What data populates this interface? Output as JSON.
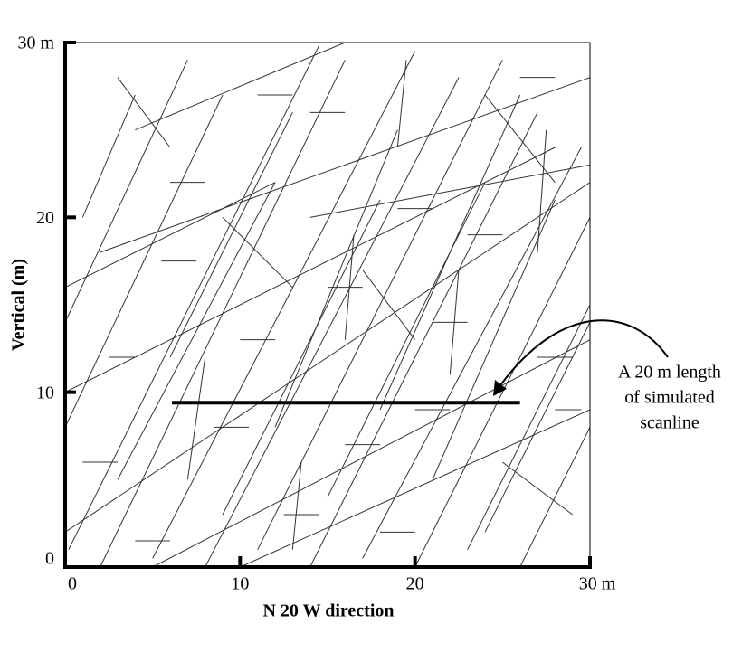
{
  "chart_data": {
    "type": "fracture_map",
    "xlabel": "N 20 W direction",
    "ylabel": "Vertical (m)",
    "xlim": [
      0,
      30
    ],
    "ylim": [
      0,
      30
    ],
    "xticks": [
      0,
      10,
      20,
      {
        "value": 30,
        "label": "30 m"
      }
    ],
    "yticks": [
      0,
      10,
      20,
      {
        "value": 30,
        "label": "30 m"
      }
    ],
    "scanline": {
      "x": [
        6.1,
        26.0
      ],
      "y": [
        9.4,
        9.4
      ]
    },
    "annotation": [
      "A 20 m length",
      "of simulated",
      "scanline"
    ],
    "fractures": [
      [
        0.2,
        1.0,
        14.5,
        29.8
      ],
      [
        2.0,
        0.0,
        16.0,
        29.0
      ],
      [
        5.0,
        0.5,
        20.0,
        29.5
      ],
      [
        8.0,
        0.0,
        22.5,
        28.0
      ],
      [
        11.0,
        1.0,
        25.0,
        29.0
      ],
      [
        14.0,
        0.0,
        27.0,
        26.0
      ],
      [
        17.0,
        0.5,
        29.5,
        24.0
      ],
      [
        20.0,
        0.0,
        30.0,
        20.0
      ],
      [
        23.0,
        1.0,
        30.0,
        15.0
      ],
      [
        0.0,
        8.0,
        9.0,
        27.0
      ],
      [
        0.0,
        14.0,
        7.0,
        29.0
      ],
      [
        3.0,
        5.0,
        12.0,
        22.0
      ],
      [
        6.0,
        12.0,
        13.0,
        26.0
      ],
      [
        9.0,
        3.0,
        18.0,
        21.0
      ],
      [
        12.0,
        8.0,
        19.0,
        25.0
      ],
      [
        15.0,
        4.0,
        24.0,
        22.0
      ],
      [
        18.0,
        9.0,
        26.0,
        27.0
      ],
      [
        21.0,
        5.0,
        28.0,
        21.0
      ],
      [
        24.0,
        2.0,
        30.0,
        14.0
      ],
      [
        26.0,
        0.0,
        30.0,
        8.0
      ],
      [
        0.0,
        2.0,
        30.0,
        22.0
      ],
      [
        0.0,
        10.0,
        28.0,
        24.0
      ],
      [
        2.0,
        18.0,
        30.0,
        28.0
      ],
      [
        5.0,
        0.0,
        30.0,
        13.0
      ],
      [
        10.0,
        0.0,
        30.0,
        9.0
      ],
      [
        0.0,
        16.0,
        12.0,
        22.0
      ],
      [
        14.0,
        20.0,
        30.0,
        23.0
      ],
      [
        4.0,
        25.0,
        16.0,
        30.0
      ],
      [
        1.0,
        20.0,
        4.0,
        27.0
      ],
      [
        7.0,
        5.0,
        8.0,
        12.0
      ],
      [
        13.0,
        1.0,
        13.5,
        6.0
      ],
      [
        16.0,
        13.0,
        16.5,
        19.0
      ],
      [
        22.0,
        11.0,
        22.5,
        17.0
      ],
      [
        27.0,
        18.0,
        27.5,
        25.0
      ],
      [
        19.0,
        24.0,
        19.5,
        29.0
      ],
      [
        3.0,
        28.0,
        6.0,
        24.0
      ],
      [
        9.0,
        20.0,
        13.0,
        16.0
      ],
      [
        17.0,
        17.0,
        20.0,
        13.0
      ],
      [
        24.0,
        27.0,
        28.0,
        22.0
      ],
      [
        25.0,
        6.0,
        29.0,
        3.0
      ],
      [
        1.0,
        6.0,
        3.0,
        6.0
      ],
      [
        5.5,
        17.5,
        7.5,
        17.5
      ],
      [
        10.0,
        13.0,
        12.0,
        13.0
      ],
      [
        14.0,
        26.0,
        16.0,
        26.0
      ],
      [
        20.0,
        9.0,
        22.0,
        9.0
      ],
      [
        23.0,
        19.0,
        25.0,
        19.0
      ],
      [
        27.0,
        12.0,
        29.0,
        12.0
      ],
      [
        8.5,
        8.0,
        10.5,
        8.0
      ],
      [
        12.5,
        3.0,
        14.5,
        3.0
      ],
      [
        18.0,
        2.0,
        20.0,
        2.0
      ],
      [
        2.5,
        12.0,
        4.0,
        12.0
      ],
      [
        6.0,
        22.0,
        8.0,
        22.0
      ],
      [
        11.0,
        27.0,
        13.0,
        27.0
      ],
      [
        16.0,
        7.0,
        18.0,
        7.0
      ],
      [
        21.0,
        14.0,
        23.0,
        14.0
      ],
      [
        26.0,
        28.0,
        28.0,
        28.0
      ],
      [
        28.0,
        9.0,
        29.5,
        9.0
      ],
      [
        4.0,
        1.5,
        6.0,
        1.5
      ],
      [
        15.0,
        16.0,
        17.0,
        16.0
      ],
      [
        19.0,
        20.5,
        21.0,
        20.5
      ]
    ]
  }
}
